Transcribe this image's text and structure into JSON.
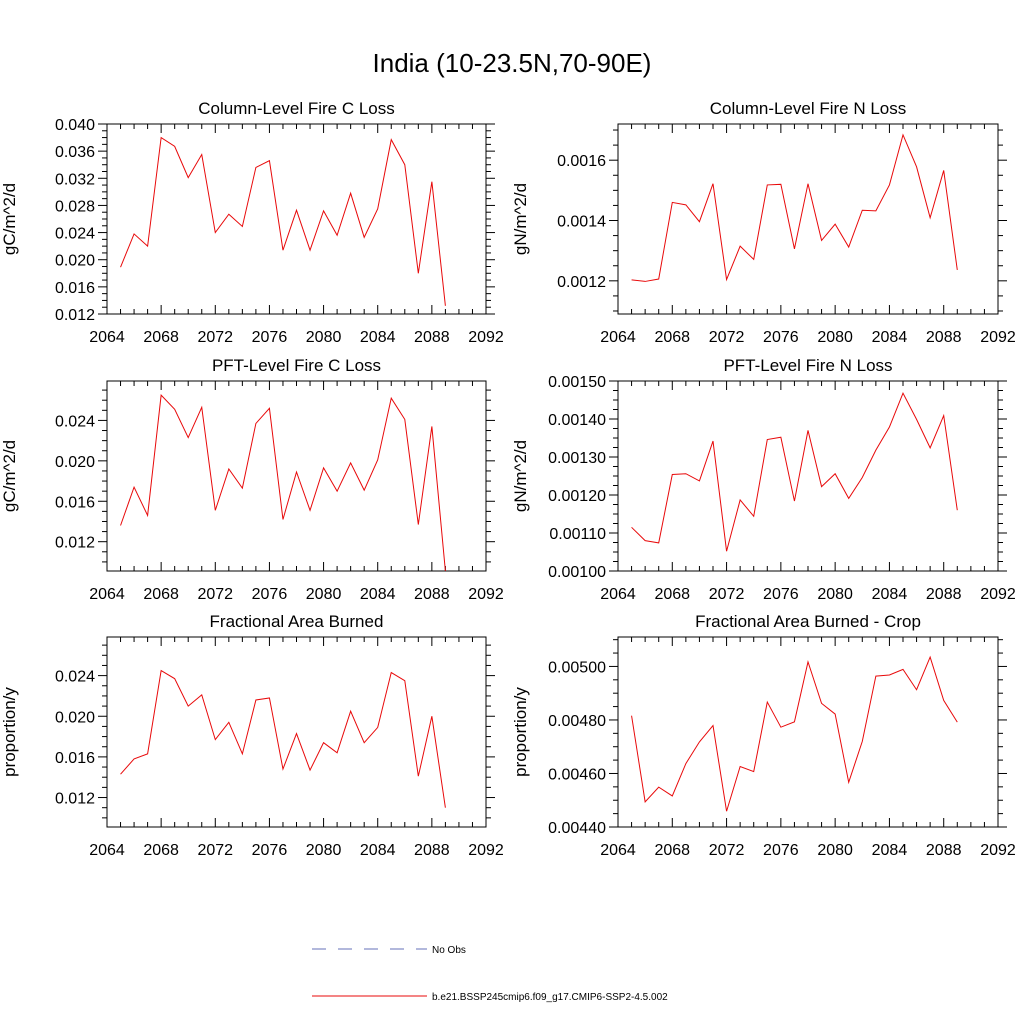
{
  "title": "India (10-23.5N,70-90E)",
  "legend": [
    {
      "label": "No Obs",
      "color": "#6670b8",
      "dash": true
    },
    {
      "label": "b.e21.BSSP245cmip6.f09_g17.CMIP6-SSP2-4.5.002",
      "color": "#e8090a",
      "dash": false
    }
  ],
  "chart_data": [
    {
      "type": "line",
      "title": "Column-Level Fire C Loss",
      "ylabel": "gC/m^2/d",
      "xlim": [
        2064,
        2092
      ],
      "xticks": [
        2064,
        2068,
        2072,
        2076,
        2080,
        2084,
        2088,
        2092
      ],
      "ylim": [
        0.012,
        0.04
      ],
      "yticks": [
        "0.012",
        "0.016",
        "0.020",
        "0.024",
        "0.028",
        "0.032",
        "0.036",
        "0.040"
      ],
      "line_color": "#e8090a",
      "x": [
        2065,
        2066,
        2067,
        2068,
        2069,
        2070,
        2071,
        2072,
        2073,
        2074,
        2075,
        2076,
        2077,
        2078,
        2079,
        2080,
        2081,
        2082,
        2083,
        2084,
        2085,
        2086,
        2087,
        2088,
        2089
      ],
      "y": [
        0.0189,
        0.0238,
        0.022,
        0.038,
        0.0367,
        0.0321,
        0.0355,
        0.024,
        0.0267,
        0.0249,
        0.0336,
        0.0346,
        0.0214,
        0.0273,
        0.0214,
        0.0272,
        0.0236,
        0.0298,
        0.0233,
        0.0275,
        0.0377,
        0.034,
        0.018,
        0.0315,
        0.0132
      ]
    },
    {
      "type": "line",
      "title": "Column-Level Fire N Loss",
      "ylabel": "gN/m^2/d",
      "xlim": [
        2064,
        2092
      ],
      "xticks": [
        2064,
        2068,
        2072,
        2076,
        2080,
        2084,
        2088,
        2092
      ],
      "ylim": [
        0.00109,
        0.00172
      ],
      "yticks": [
        "0.0012",
        "0.0014",
        "0.0016"
      ],
      "line_color": "#e8090a",
      "x": [
        2065,
        2066,
        2067,
        2068,
        2069,
        2070,
        2071,
        2072,
        2073,
        2074,
        2075,
        2076,
        2077,
        2078,
        2079,
        2080,
        2081,
        2082,
        2083,
        2084,
        2085,
        2086,
        2087,
        2088,
        2089
      ],
      "y": [
        0.001203,
        0.001198,
        0.001206,
        0.00146,
        0.001452,
        0.001396,
        0.001522,
        0.001204,
        0.001315,
        0.001271,
        0.001518,
        0.00152,
        0.001306,
        0.001522,
        0.001334,
        0.001388,
        0.001312,
        0.001434,
        0.001432,
        0.001518,
        0.001684,
        0.001578,
        0.001409,
        0.001566,
        0.001236
      ]
    },
    {
      "type": "line",
      "title": "PFT-Level Fire C Loss",
      "ylabel": "gC/m^2/d",
      "xlim": [
        2064,
        2092
      ],
      "xticks": [
        2064,
        2068,
        2072,
        2076,
        2080,
        2084,
        2088,
        2092
      ],
      "ylim": [
        0.0091,
        0.0279
      ],
      "yticks": [
        "0.012",
        "0.016",
        "0.020",
        "0.024"
      ],
      "line_color": "#e8090a",
      "x": [
        2065,
        2066,
        2067,
        2068,
        2069,
        2070,
        2071,
        2072,
        2073,
        2074,
        2075,
        2076,
        2077,
        2078,
        2079,
        2080,
        2081,
        2082,
        2083,
        2084,
        2085,
        2086,
        2087,
        2088,
        2089
      ],
      "y": [
        0.0136,
        0.0174,
        0.0146,
        0.0265,
        0.0251,
        0.0223,
        0.0253,
        0.0151,
        0.0192,
        0.0173,
        0.0237,
        0.0252,
        0.0142,
        0.0189,
        0.0151,
        0.0193,
        0.017,
        0.0198,
        0.0171,
        0.0201,
        0.0262,
        0.0241,
        0.0137,
        0.0234,
        0.0091
      ]
    },
    {
      "type": "line",
      "title": "PFT-Level Fire N Loss",
      "ylabel": "gN/m^2/d",
      "xlim": [
        2064,
        2092
      ],
      "xticks": [
        2064,
        2068,
        2072,
        2076,
        2080,
        2084,
        2088,
        2092
      ],
      "ylim": [
        0.001,
        0.0015
      ],
      "yticks": [
        "0.00100",
        "0.00110",
        "0.00120",
        "0.00130",
        "0.00140",
        "0.00150"
      ],
      "line_color": "#e8090a",
      "x": [
        2065,
        2066,
        2067,
        2068,
        2069,
        2070,
        2071,
        2072,
        2073,
        2074,
        2075,
        2076,
        2077,
        2078,
        2079,
        2080,
        2081,
        2082,
        2083,
        2084,
        2085,
        2086,
        2087,
        2088,
        2089
      ],
      "y": [
        0.001115,
        0.00108,
        0.001074,
        0.001254,
        0.001256,
        0.001237,
        0.001342,
        0.001052,
        0.001187,
        0.001144,
        0.001346,
        0.001352,
        0.001184,
        0.00137,
        0.001222,
        0.001256,
        0.001191,
        0.001246,
        0.001318,
        0.001379,
        0.001468,
        0.001399,
        0.001324,
        0.001409,
        0.00116
      ]
    },
    {
      "type": "line",
      "title": "Fractional Area Burned",
      "ylabel": "proportion/y",
      "xlim": [
        2064,
        2092
      ],
      "xticks": [
        2064,
        2068,
        2072,
        2076,
        2080,
        2084,
        2088,
        2092
      ],
      "ylim": [
        0.0091,
        0.0278
      ],
      "yticks": [
        "0.012",
        "0.016",
        "0.020",
        "0.024"
      ],
      "line_color": "#e8090a",
      "x": [
        2065,
        2066,
        2067,
        2068,
        2069,
        2070,
        2071,
        2072,
        2073,
        2074,
        2075,
        2076,
        2077,
        2078,
        2079,
        2080,
        2081,
        2082,
        2083,
        2084,
        2085,
        2086,
        2087,
        2088,
        2089
      ],
      "y": [
        0.0143,
        0.0158,
        0.0163,
        0.0245,
        0.0237,
        0.021,
        0.0221,
        0.0177,
        0.0194,
        0.0163,
        0.0216,
        0.0218,
        0.0148,
        0.0183,
        0.0147,
        0.0174,
        0.0164,
        0.0205,
        0.0174,
        0.0189,
        0.0243,
        0.0235,
        0.0141,
        0.02,
        0.011
      ]
    },
    {
      "type": "line",
      "title": "Fractional Area Burned - Crop",
      "ylabel": "proportion/y",
      "xlim": [
        2064,
        2092
      ],
      "xticks": [
        2064,
        2068,
        2072,
        2076,
        2080,
        2084,
        2088,
        2092
      ],
      "ylim": [
        0.0044,
        0.00511
      ],
      "yticks": [
        "0.00440",
        "0.00460",
        "0.00480",
        "0.00500"
      ],
      "line_color": "#e8090a",
      "x": [
        2065,
        2066,
        2067,
        2068,
        2069,
        2070,
        2071,
        2072,
        2073,
        2074,
        2075,
        2076,
        2077,
        2078,
        2079,
        2080,
        2081,
        2082,
        2083,
        2084,
        2085,
        2086,
        2087,
        2088,
        2089
      ],
      "y": [
        0.004816,
        0.004494,
        0.004549,
        0.004516,
        0.004637,
        0.004718,
        0.004779,
        0.004459,
        0.004626,
        0.004607,
        0.004867,
        0.004773,
        0.004793,
        0.005017,
        0.004862,
        0.004822,
        0.004567,
        0.00472,
        0.004964,
        0.004968,
        0.004989,
        0.004913,
        0.005035,
        0.004873,
        0.004792
      ]
    }
  ]
}
